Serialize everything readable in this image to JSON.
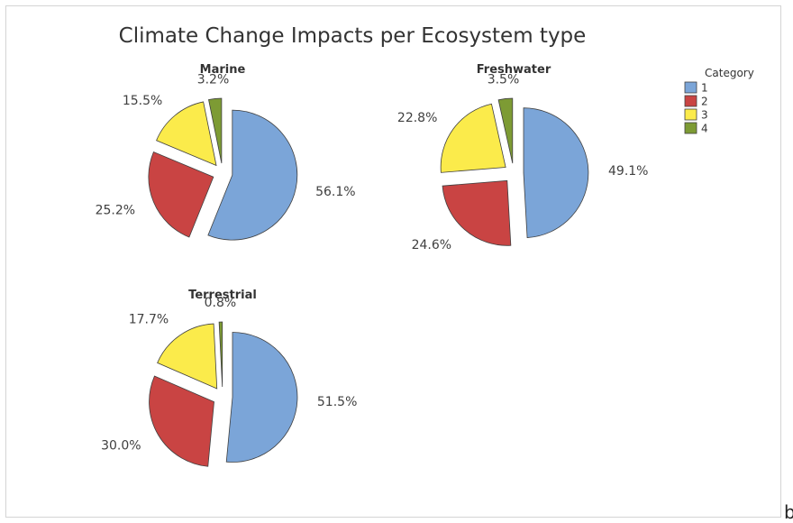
{
  "chart_data": {
    "type": "pie",
    "title": "Climate Change Impacts per Ecosystem type",
    "legend": {
      "title": "Category",
      "placement": "top-right",
      "entries": [
        "1",
        "2",
        "3",
        "4"
      ]
    },
    "colors": [
      "#7ba5d8",
      "#c94443",
      "#fbeb4b",
      "#7d9b34"
    ],
    "pies": [
      {
        "name": "Marine",
        "categories": [
          "1",
          "2",
          "3",
          "4"
        ],
        "values": [
          56.1,
          25.2,
          15.5,
          3.2
        ],
        "labels": [
          "56.1%",
          "25.2%",
          "15.5%",
          "3.2%"
        ]
      },
      {
        "name": "Freshwater",
        "categories": [
          "1",
          "2",
          "3",
          "4"
        ],
        "values": [
          49.1,
          24.6,
          22.8,
          3.5
        ],
        "labels": [
          "49.1%",
          "24.6%",
          "22.8%",
          "3.5%"
        ]
      },
      {
        "name": "Terrestrial",
        "categories": [
          "1",
          "2",
          "3",
          "4"
        ],
        "values": [
          51.5,
          30.0,
          17.7,
          0.8
        ],
        "labels": [
          "51.5%",
          "30.0%",
          "17.7%",
          "0.8%"
        ]
      }
    ]
  },
  "edge_glyph": "b"
}
